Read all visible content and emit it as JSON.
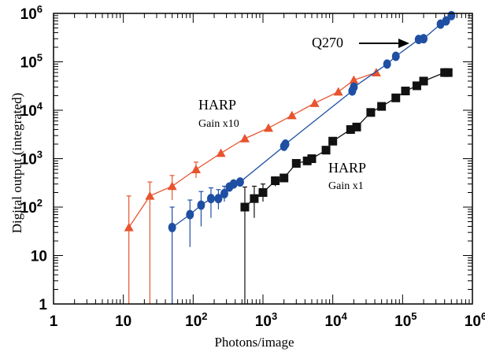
{
  "chart_data": {
    "type": "scatter",
    "xlabel": "Photons/image",
    "ylabel": "Digital output (integrated)",
    "xscale": "log",
    "yscale": "log",
    "xlim": [
      1,
      1000000
    ],
    "ylim": [
      1,
      1000000
    ],
    "grid": false,
    "legend": "none",
    "x_ticks": [
      {
        "value": 1,
        "base": "1",
        "exp": ""
      },
      {
        "value": 10,
        "base": "10",
        "exp": ""
      },
      {
        "value": 100,
        "base": "10",
        "exp": "2"
      },
      {
        "value": 1000,
        "base": "10",
        "exp": "3"
      },
      {
        "value": 10000,
        "base": "10",
        "exp": "4"
      },
      {
        "value": 100000,
        "base": "10",
        "exp": "5"
      },
      {
        "value": 1000000,
        "base": "10",
        "exp": "6"
      }
    ],
    "y_ticks": [
      {
        "value": 1,
        "base": "1",
        "exp": ""
      },
      {
        "value": 10,
        "base": "10",
        "exp": ""
      },
      {
        "value": 100,
        "base": "10",
        "exp": "2"
      },
      {
        "value": 1000,
        "base": "10",
        "exp": "3"
      },
      {
        "value": 10000,
        "base": "10",
        "exp": "4"
      },
      {
        "value": 100000,
        "base": "10",
        "exp": "5"
      },
      {
        "value": 1000000,
        "base": "10",
        "exp": "6"
      }
    ],
    "annotations": [
      {
        "id": "q270",
        "lines": [
          "Q270"
        ],
        "arrow": true
      },
      {
        "id": "harp-x10",
        "lines": [
          "HARP",
          "Gain x10"
        ]
      },
      {
        "id": "harp-x1",
        "lines": [
          "HARP",
          "Gain x1"
        ]
      }
    ],
    "series": [
      {
        "id": "harp-gain-x10",
        "marker": "triangle",
        "color": "#e8542e",
        "points": [
          {
            "x": 12,
            "y": 38,
            "lo": 1,
            "hi": 170
          },
          {
            "x": 24,
            "y": 170,
            "lo": 1,
            "hi": 330
          },
          {
            "x": 50,
            "y": 270,
            "lo": 140,
            "hi": 450
          },
          {
            "x": 110,
            "y": 600,
            "lo": 400,
            "hi": 850
          },
          {
            "x": 250,
            "y": 1300,
            "lo": null,
            "hi": null
          },
          {
            "x": 550,
            "y": 2600,
            "lo": null,
            "hi": null
          },
          {
            "x": 1200,
            "y": 4300,
            "lo": null,
            "hi": null
          },
          {
            "x": 2600,
            "y": 7800,
            "lo": null,
            "hi": null
          },
          {
            "x": 5500,
            "y": 14000,
            "lo": null,
            "hi": null
          },
          {
            "x": 12000,
            "y": 24000,
            "lo": null,
            "hi": null
          },
          {
            "x": 20000,
            "y": 42000,
            "lo": null,
            "hi": null
          },
          {
            "x": 42000,
            "y": 60000,
            "lo": null,
            "hi": null
          }
        ]
      },
      {
        "id": "q270",
        "marker": "circle",
        "color": "#1f4fa3",
        "points": [
          {
            "x": 50,
            "y": 38,
            "lo": 1,
            "hi": 100
          },
          {
            "x": 90,
            "y": 70,
            "lo": 15,
            "hi": 140
          },
          {
            "x": 130,
            "y": 110,
            "lo": 40,
            "hi": 210
          },
          {
            "x": 180,
            "y": 150,
            "lo": 60,
            "hi": 250
          },
          {
            "x": 230,
            "y": 150,
            "lo": 90,
            "hi": 230
          },
          {
            "x": 280,
            "y": 190,
            "lo": 130,
            "hi": 270
          },
          {
            "x": 330,
            "y": 260,
            "lo": null,
            "hi": null
          },
          {
            "x": 380,
            "y": 300,
            "lo": null,
            "hi": null
          },
          {
            "x": 470,
            "y": 330,
            "lo": null,
            "hi": null
          },
          {
            "x": 2000,
            "y": 1800,
            "lo": null,
            "hi": null
          },
          {
            "x": 2100,
            "y": 2000,
            "lo": null,
            "hi": null
          },
          {
            "x": 19000,
            "y": 25000,
            "lo": null,
            "hi": null
          },
          {
            "x": 20000,
            "y": 30000,
            "lo": null,
            "hi": null
          },
          {
            "x": 60000,
            "y": 90000,
            "lo": null,
            "hi": null
          },
          {
            "x": 80000,
            "y": 130000,
            "lo": null,
            "hi": null
          },
          {
            "x": 170000,
            "y": 290000,
            "lo": null,
            "hi": null
          },
          {
            "x": 200000,
            "y": 300000,
            "lo": null,
            "hi": null
          },
          {
            "x": 350000,
            "y": 600000,
            "lo": null,
            "hi": null
          },
          {
            "x": 420000,
            "y": 700000,
            "lo": null,
            "hi": null
          },
          {
            "x": 500000,
            "y": 900000,
            "lo": null,
            "hi": null
          }
        ]
      },
      {
        "id": "harp-gain-x1",
        "marker": "square",
        "color": "#111111",
        "points": [
          {
            "x": 550,
            "y": 100,
            "lo": 1,
            "hi": 260
          },
          {
            "x": 750,
            "y": 150,
            "lo": 60,
            "hi": 270
          },
          {
            "x": 1000,
            "y": 200,
            "lo": 130,
            "hi": 300
          },
          {
            "x": 1500,
            "y": 350,
            "lo": 270,
            "hi": 420
          },
          {
            "x": 2000,
            "y": 400,
            "lo": null,
            "hi": null
          },
          {
            "x": 3000,
            "y": 800,
            "lo": null,
            "hi": null
          },
          {
            "x": 4300,
            "y": 900,
            "lo": null,
            "hi": null
          },
          {
            "x": 5000,
            "y": 1000,
            "lo": null,
            "hi": null
          },
          {
            "x": 8000,
            "y": 1500,
            "lo": null,
            "hi": null
          },
          {
            "x": 10000,
            "y": 2300,
            "lo": null,
            "hi": null
          },
          {
            "x": 18000,
            "y": 4000,
            "lo": null,
            "hi": null
          },
          {
            "x": 22000,
            "y": 4500,
            "lo": null,
            "hi": null
          },
          {
            "x": 35000,
            "y": 9000,
            "lo": null,
            "hi": null
          },
          {
            "x": 50000,
            "y": 12000,
            "lo": null,
            "hi": null
          },
          {
            "x": 80000,
            "y": 18000,
            "lo": null,
            "hi": null
          },
          {
            "x": 110000,
            "y": 25000,
            "lo": null,
            "hi": null
          },
          {
            "x": 160000,
            "y": 32000,
            "lo": null,
            "hi": null
          },
          {
            "x": 200000,
            "y": 40000,
            "lo": null,
            "hi": null
          },
          {
            "x": 400000,
            "y": 60000,
            "lo": null,
            "hi": null
          },
          {
            "x": 450000,
            "y": 60000,
            "lo": null,
            "hi": null
          }
        ]
      }
    ]
  }
}
